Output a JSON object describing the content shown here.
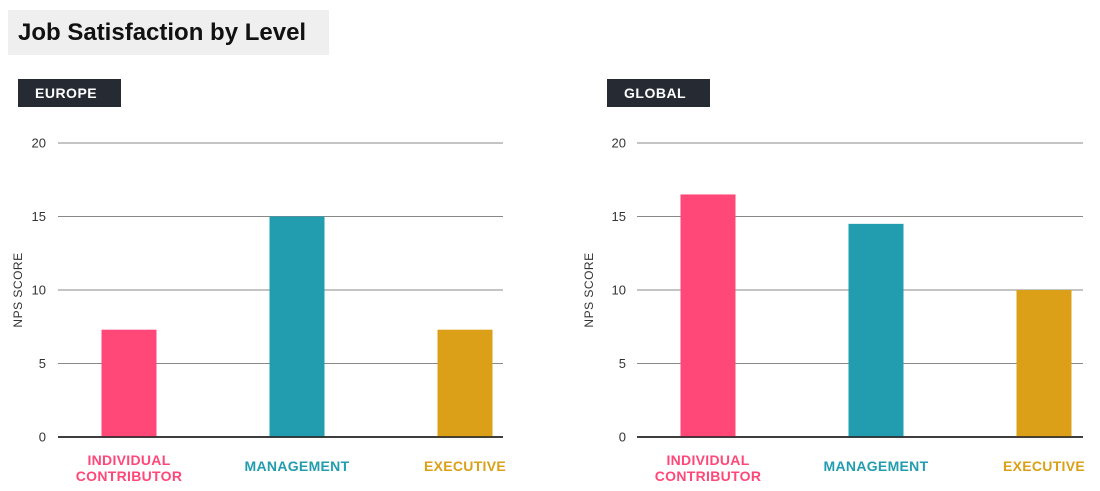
{
  "title": "Job Satisfaction by Level",
  "colors": {
    "individual": "#ff4778",
    "management": "#229daf",
    "executive": "#dba017",
    "tag_bg": "#262a33",
    "grid": "#888888"
  },
  "chart_data": [
    {
      "type": "bar",
      "title": "EUROPE",
      "ylabel": "NPS SCORE",
      "xlabel": "",
      "ylim": [
        0,
        20
      ],
      "yticks": [
        "0",
        "5",
        "10",
        "15",
        "20"
      ],
      "categories": [
        [
          "INDIVIDUAL",
          "CONTRIBUTOR"
        ],
        [
          "MANAGEMENT"
        ],
        [
          "EXECUTIVE"
        ]
      ],
      "values": [
        7.3,
        15,
        7.3
      ],
      "colors": [
        "#ff4778",
        "#229daf",
        "#dba017"
      ]
    },
    {
      "type": "bar",
      "title": "GLOBAL",
      "ylabel": "NPS SCORE",
      "xlabel": "",
      "ylim": [
        0,
        20
      ],
      "yticks": [
        "0",
        "5",
        "10",
        "15",
        "20"
      ],
      "categories": [
        [
          "INDIVIDUAL",
          "CONTRIBUTOR"
        ],
        [
          "MANAGEMENT"
        ],
        [
          "EXECUTIVE"
        ]
      ],
      "values": [
        16.5,
        14.5,
        10
      ],
      "colors": [
        "#ff4778",
        "#229daf",
        "#dba017"
      ]
    }
  ]
}
